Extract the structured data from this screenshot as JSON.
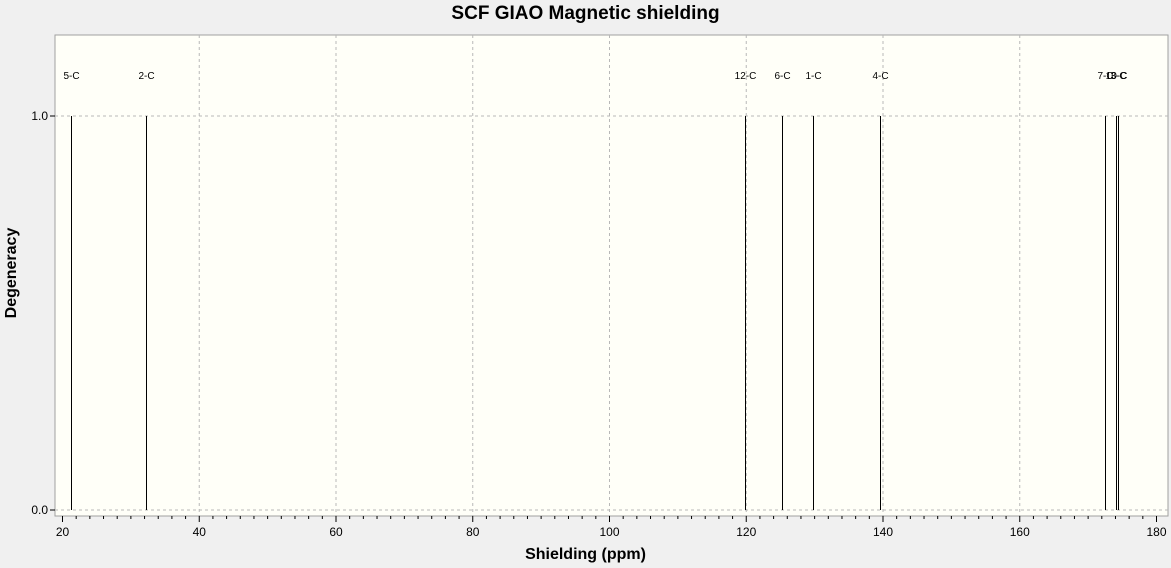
{
  "chart_data": {
    "type": "bar",
    "title": "SCF GIAO Magnetic shielding",
    "xlabel": "Shielding (ppm)",
    "ylabel": "Degeneracy",
    "xlim": [
      19,
      180
    ],
    "ylim": [
      0,
      1.2
    ],
    "xticks": [
      20,
      40,
      60,
      80,
      100,
      120,
      140,
      160,
      180
    ],
    "yticks": [
      0.0,
      1.0
    ],
    "ytick_labels": [
      "0.0",
      "1.0"
    ],
    "grid": true,
    "background": "#fffff8",
    "peaks": [
      {
        "label": "5-C",
        "x": 21.3,
        "degeneracy": 1.0
      },
      {
        "label": "2-C",
        "x": 32.2,
        "degeneracy": 1.0
      },
      {
        "label": "12-C",
        "x": 119.8,
        "degeneracy": 1.0
      },
      {
        "label": "6-C",
        "x": 125.3,
        "degeneracy": 1.0
      },
      {
        "label": "1-C",
        "x": 129.7,
        "degeneracy": 1.0
      },
      {
        "label": "4-C",
        "x": 139.6,
        "degeneracy": 1.0
      },
      {
        "label": "7-C",
        "x": 172.5,
        "degeneracy": 1.0
      },
      {
        "label": "10-C",
        "x": 174.1,
        "degeneracy": 1.0
      },
      {
        "label": "3-C",
        "x": 174.4,
        "degeneracy": 1.0
      }
    ]
  }
}
